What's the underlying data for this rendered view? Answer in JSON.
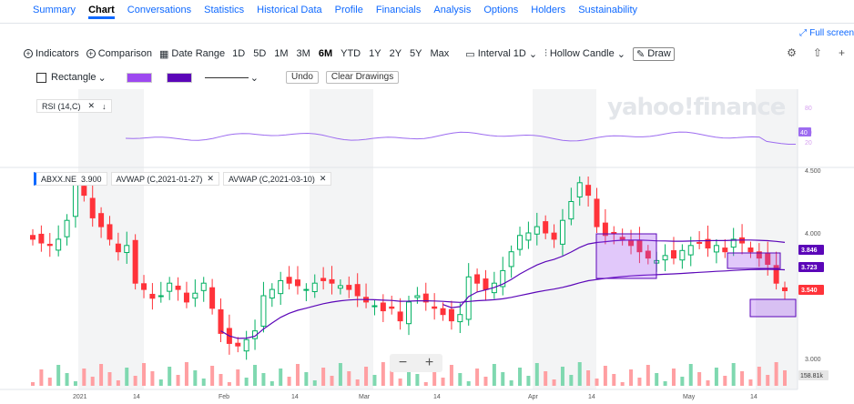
{
  "nav": {
    "tabs": [
      "Summary",
      "Chart",
      "Conversations",
      "Statistics",
      "Historical Data",
      "Profile",
      "Financials",
      "Analysis",
      "Options",
      "Holders",
      "Sustainability"
    ],
    "active": "Chart"
  },
  "fullscreen_label": "Full screen",
  "toolbar": {
    "indicators": "Indicators",
    "comparison": "Comparison",
    "date_range": "Date Range",
    "ranges": [
      "1D",
      "5D",
      "1M",
      "3M",
      "6M",
      "YTD",
      "1Y",
      "2Y",
      "5Y",
      "Max"
    ],
    "active_range": "6M",
    "interval_label": "Interval",
    "interval_value": "1D",
    "chart_type": "Hollow Candle",
    "draw": "Draw"
  },
  "drawing_toolbar": {
    "shape": "Rectangle",
    "fill_color": "#9d49f0",
    "border_color": "#5b06b8",
    "undo": "Undo",
    "clear": "Clear Drawings"
  },
  "watermark": "yahoo!finance",
  "rsi": {
    "label": "RSI (14,C)",
    "levels": [
      "80",
      "40",
      "20"
    ],
    "current": "40"
  },
  "indicators": [
    {
      "label": "ABXX.NE",
      "value": "3.900"
    },
    {
      "label": "AVWAP (C,2021-01-27)"
    },
    {
      "label": "AVWAP (C,2021-03-10)"
    }
  ],
  "price_axis": [
    "4.500",
    "4.000",
    "3.000"
  ],
  "price_tags": [
    {
      "value": "3.846",
      "color": "#5b06b8"
    },
    {
      "value": "3.723",
      "color": "#5b06b8"
    },
    {
      "value": "3.540",
      "color": "#ff333a"
    }
  ],
  "volume_tag": "158.81k",
  "x_axis": [
    "2021",
    "14",
    "Feb",
    "14",
    "Mar",
    "14",
    "Apr",
    "14",
    "May",
    "14"
  ],
  "zoom": {
    "minus": "−",
    "plus": "+"
  },
  "colors": {
    "up": "#00b061",
    "down": "#ff333a",
    "avwap": "#5b06b8",
    "rsi": "#9d6cf0",
    "accent": "#0f69ff"
  },
  "chart_data": {
    "type": "candlestick",
    "series": [
      {
        "name": "ABXX.NE",
        "close": [
          3.95,
          3.92,
          3.9,
          3.95,
          4.1,
          4.4,
          4.3,
          4.12,
          4.05,
          3.95,
          3.85,
          3.9,
          3.6,
          3.55,
          3.48,
          3.5,
          3.6,
          3.55,
          3.45,
          3.52,
          3.6,
          3.4,
          3.2,
          3.12,
          3.1,
          3.15,
          3.22,
          3.5,
          3.55,
          3.62,
          3.6,
          3.58,
          3.55,
          3.6,
          3.62,
          3.6,
          3.58,
          3.55,
          3.5,
          3.45,
          3.42,
          3.38,
          3.4,
          3.3,
          3.45,
          3.5,
          3.45,
          3.4,
          3.35,
          3.3,
          3.35,
          3.65,
          3.6,
          3.55,
          3.6,
          3.7,
          3.85,
          3.98,
          4.0,
          4.05,
          4.0,
          3.95,
          4.1,
          4.25,
          4.4,
          4.3,
          4.05,
          3.98,
          4.0,
          3.95,
          3.9,
          3.85,
          3.8,
          3.78,
          3.82,
          3.8,
          3.86,
          3.9,
          3.92,
          3.88,
          3.9,
          3.85,
          3.95,
          3.92,
          3.85,
          3.8,
          3.75,
          3.6,
          3.54
        ]
      }
    ],
    "price_axis_labels": [
      "4.500",
      "4.000",
      "3.000"
    ],
    "rsi_levels": [
      80,
      40,
      20
    ]
  }
}
